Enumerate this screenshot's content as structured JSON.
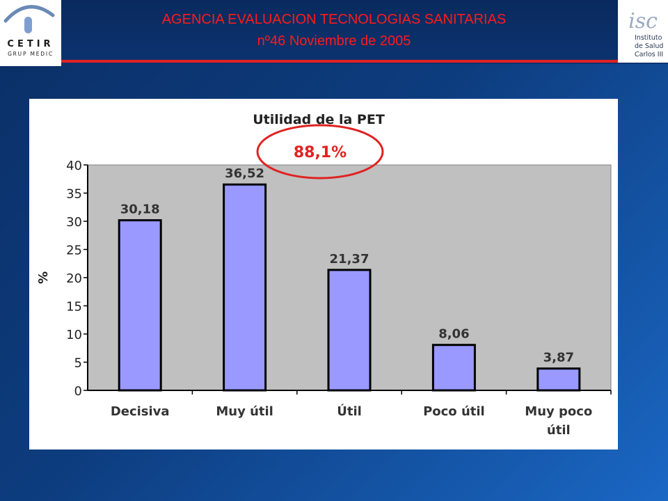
{
  "slide": {
    "title_line1": "AGENCIA EVALUACION TECNOLOGIAS SANITARIAS",
    "title_line2": "nº46 Noviembre de 2005"
  },
  "logos": {
    "left": {
      "letters": "CETIR",
      "sub": "GRUP MEDIC"
    },
    "right": {
      "lines": [
        "Instituto",
        "de Salud",
        "Carlos III"
      ],
      "mark": "isc"
    }
  },
  "colors": {
    "title": "#ff1a1a",
    "bar_fill": "#9999ff",
    "plot_background": "#c0c0c0",
    "callout": "#e02222"
  },
  "annotation": {
    "label": "88,1%"
  },
  "chart_data": {
    "type": "bar",
    "title": "Utilidad de la PET",
    "xlabel": "",
    "ylabel": "%",
    "categories": [
      [
        "Decisiva"
      ],
      [
        "Muy útil"
      ],
      [
        "Útil"
      ],
      [
        "Poco útil"
      ],
      [
        "Muy poco",
        "útil"
      ]
    ],
    "values": [
      30.18,
      36.52,
      21.37,
      8.06,
      3.87
    ],
    "data_labels": [
      "30,18",
      "36,52",
      "21,37",
      "8,06",
      "3,87"
    ],
    "ylim": [
      0,
      40
    ],
    "yticks": [
      0,
      5,
      10,
      15,
      20,
      25,
      30,
      35,
      40
    ],
    "grid": false,
    "legend": "none"
  }
}
